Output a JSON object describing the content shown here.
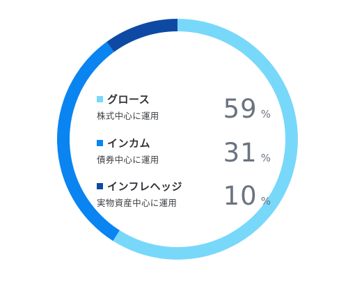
{
  "chart_data": {
    "type": "pie",
    "series": [
      {
        "label": "グロース",
        "description": "株式中心に運用",
        "value": 59,
        "unit": "%",
        "color": "#78D8FA"
      },
      {
        "label": "インカム",
        "description": "債券中心に運用",
        "value": 31,
        "unit": "%",
        "color": "#0A84F0"
      },
      {
        "label": "インフレヘッジ",
        "description": "実物資産中心に運用",
        "value": 10,
        "unit": "%",
        "color": "#0E4AA3"
      }
    ]
  }
}
